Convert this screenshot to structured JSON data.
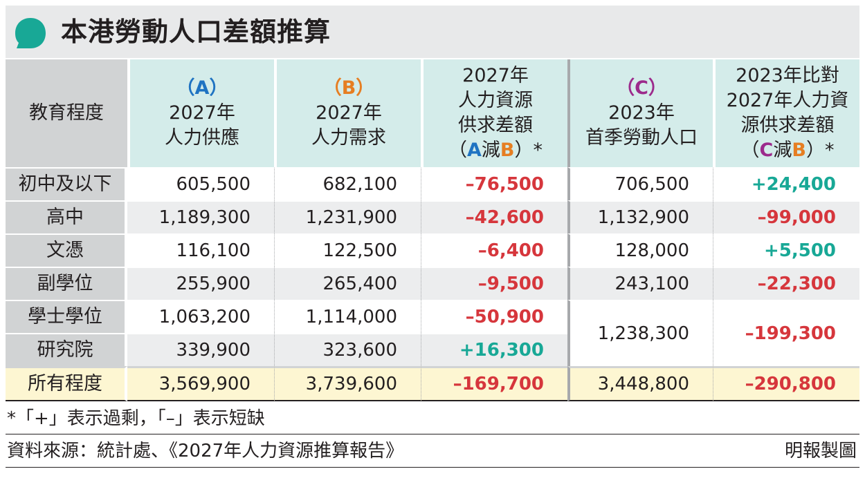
{
  "title": "本港勞動人口差額推算",
  "colors": {
    "teal_header": "#d4ecea",
    "label_gray": "#d1d3d4",
    "total_yellow": "#fdf6d2",
    "negative": "#d6363c",
    "positive": "#18a896",
    "A": "#1f73c2",
    "B": "#e67e22",
    "C": "#9c2a8c"
  },
  "icons": {
    "title": "speech-bubble-icon"
  },
  "header": {
    "label": "教育程度",
    "col_a": {
      "tag_open": "（",
      "tag": "A",
      "tag_close": "）",
      "line1": "2027年",
      "line2": "人力供應"
    },
    "col_b": {
      "tag_open": "（",
      "tag": "B",
      "tag_close": "）",
      "line1": "2027年",
      "line2": "人力需求"
    },
    "col_ab": {
      "line1": "2027年",
      "line2": "人力資源",
      "line3": "供求差額",
      "paren_open": "（",
      "a": "A",
      "minus": "減",
      "b": "B",
      "paren_close": "）*"
    },
    "col_c": {
      "tag_open": "（",
      "tag": "C",
      "tag_close": "）",
      "line1": "2023年",
      "line2": "首季勞動人口"
    },
    "col_cb": {
      "line1": "2023年比對",
      "line2": "2027年人力資",
      "line3": "源供求差額",
      "paren_open": "（",
      "c": "C",
      "minus": "減",
      "b": "B",
      "paren_close": "）*"
    }
  },
  "chart_data": {
    "type": "table",
    "title": "本港勞動人口差額推算",
    "columns": [
      "教育程度",
      "（A）2027年人力供應",
      "（B）2027年人力需求",
      "2027年人力資源供求差額（A減B）*",
      "（C）2023年首季勞動人口",
      "2023年比對2027年人力資源供求差額（C減B）*"
    ],
    "rows": [
      {
        "level": "初中及以下",
        "supply_2027": "605,500",
        "demand_2027": "682,100",
        "gap_2027": "–76,500",
        "labour_2023": "706,500",
        "gap_2023": "+24,400"
      },
      {
        "level": "高中",
        "supply_2027": "1,189,300",
        "demand_2027": "1,231,900",
        "gap_2027": "–42,600",
        "labour_2023": "1,132,900",
        "gap_2023": "–99,000"
      },
      {
        "level": "文憑",
        "supply_2027": "116,100",
        "demand_2027": "122,500",
        "gap_2027": "–6,400",
        "labour_2023": "128,000",
        "gap_2023": "+5,500"
      },
      {
        "level": "副學位",
        "supply_2027": "255,900",
        "demand_2027": "265,400",
        "gap_2027": "–9,500",
        "labour_2023": "243,100",
        "gap_2023": "–22,300"
      },
      {
        "level": "學士學位",
        "supply_2027": "1,063,200",
        "demand_2027": "1,114,000",
        "gap_2027": "–50,900"
      },
      {
        "level": "研究院",
        "supply_2027": "339,900",
        "demand_2027": "323,600",
        "gap_2027": "+16,300"
      }
    ],
    "merged_degree_postgrad": {
      "labour_2023": "1,238,300",
      "gap_2023": "–199,300"
    },
    "total": {
      "level": "所有程度",
      "supply_2027": "3,569,900",
      "demand_2027": "3,739,600",
      "gap_2027": "–169,700",
      "labour_2023": "3,448,800",
      "gap_2023": "–290,800"
    }
  },
  "footnote": "*「+」表示過剩，「–」表示短缺",
  "source": "資料來源：統計處、《2027年人力資源推算報告》",
  "credit": "明報製圖"
}
